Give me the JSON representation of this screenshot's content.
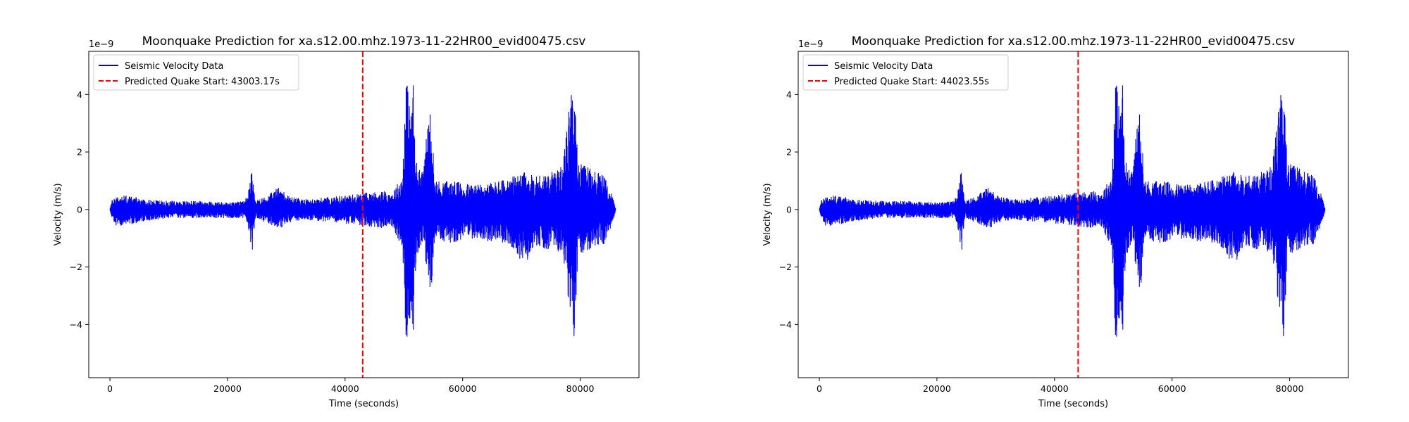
{
  "chart_data": [
    {
      "type": "line",
      "title": "Moonquake Prediction for xa.s12.00.mhz.1973-11-22HR00_evid00475.csv",
      "xlabel": "Time (seconds)",
      "ylabel": "Velocity (m/s)",
      "y_offset_text": "1e−9",
      "xlim": [
        -3600,
        90000
      ],
      "ylim": [
        -5.85,
        5.5
      ],
      "x_ticks": [
        0,
        20000,
        40000,
        60000,
        80000
      ],
      "x_tick_labels": [
        "0",
        "20000",
        "40000",
        "60000",
        "80000"
      ],
      "y_ticks": [
        4,
        2,
        0,
        -2,
        -4
      ],
      "y_tick_labels": [
        "4",
        "2",
        "0",
        "−2",
        "−4"
      ],
      "grid": false,
      "legend_position": "top-left",
      "series": [
        {
          "name": "Seismic Velocity Data",
          "color": "#0000ff",
          "style": "solid",
          "x_range": [
            0,
            86000
          ],
          "envelope": [
            [
              0,
              0.05,
              -0.05
            ],
            [
              300,
              0.3,
              -0.3
            ],
            [
              1000,
              0.5,
              -0.6
            ],
            [
              3000,
              0.5,
              -0.55
            ],
            [
              6000,
              0.35,
              -0.4
            ],
            [
              10000,
              0.3,
              -0.3
            ],
            [
              15000,
              0.3,
              -0.3
            ],
            [
              20000,
              0.25,
              -0.3
            ],
            [
              23000,
              0.3,
              -0.3
            ],
            [
              24200,
              1.4,
              -1.45
            ],
            [
              24700,
              0.3,
              -0.3
            ],
            [
              27000,
              0.5,
              -0.5
            ],
            [
              29000,
              0.85,
              -0.7
            ],
            [
              30000,
              0.5,
              -0.5
            ],
            [
              33000,
              0.35,
              -0.35
            ],
            [
              38000,
              0.45,
              -0.45
            ],
            [
              42000,
              0.55,
              -0.55
            ],
            [
              46000,
              0.65,
              -0.65
            ],
            [
              48000,
              0.6,
              -0.6
            ],
            [
              49800,
              1.2,
              -1.5
            ],
            [
              50300,
              4.9,
              -5.3
            ],
            [
              51000,
              3.8,
              -3.8
            ],
            [
              51600,
              4.5,
              -4.5
            ],
            [
              52000,
              1.8,
              -2.0
            ],
            [
              53000,
              1.2,
              -1.2
            ],
            [
              54700,
              3.9,
              -3.1
            ],
            [
              55200,
              1.0,
              -1.0
            ],
            [
              58000,
              1.0,
              -1.2
            ],
            [
              61000,
              0.9,
              -1.0
            ],
            [
              64000,
              0.9,
              -1.1
            ],
            [
              68000,
              1.1,
              -1.2
            ],
            [
              70500,
              1.3,
              -2.0
            ],
            [
              72000,
              1.2,
              -1.3
            ],
            [
              75000,
              1.3,
              -1.4
            ],
            [
              77000,
              1.5,
              -1.5
            ],
            [
              79000,
              5.1,
              -4.9
            ],
            [
              79600,
              1.6,
              -1.6
            ],
            [
              82000,
              1.5,
              -1.4
            ],
            [
              84000,
              1.2,
              -1.2
            ],
            [
              85500,
              0.5,
              -0.5
            ],
            [
              86000,
              0.05,
              -0.05
            ]
          ]
        },
        {
          "name": "Predicted Quake Start: 43003.17s",
          "color": "#ff0000",
          "style": "dashed",
          "x": 43003.17
        }
      ]
    },
    {
      "type": "line",
      "title": "Moonquake Prediction for xa.s12.00.mhz.1973-11-22HR00_evid00475.csv",
      "xlabel": "Time (seconds)",
      "ylabel": "Velocity (m/s)",
      "y_offset_text": "1e−9",
      "xlim": [
        -3600,
        90000
      ],
      "ylim": [
        -5.85,
        5.5
      ],
      "x_ticks": [
        0,
        20000,
        40000,
        60000,
        80000
      ],
      "x_tick_labels": [
        "0",
        "20000",
        "40000",
        "60000",
        "80000"
      ],
      "y_ticks": [
        4,
        2,
        0,
        -2,
        -4
      ],
      "y_tick_labels": [
        "4",
        "2",
        "0",
        "−2",
        "−4"
      ],
      "grid": false,
      "legend_position": "top-left",
      "series": [
        {
          "name": "Seismic Velocity Data",
          "color": "#0000ff",
          "style": "solid",
          "x_range": [
            0,
            86000
          ],
          "envelope": [
            [
              0,
              0.05,
              -0.05
            ],
            [
              300,
              0.3,
              -0.3
            ],
            [
              1000,
              0.5,
              -0.6
            ],
            [
              3000,
              0.5,
              -0.55
            ],
            [
              6000,
              0.35,
              -0.4
            ],
            [
              10000,
              0.3,
              -0.3
            ],
            [
              15000,
              0.3,
              -0.3
            ],
            [
              20000,
              0.25,
              -0.3
            ],
            [
              23000,
              0.3,
              -0.3
            ],
            [
              24200,
              1.4,
              -1.45
            ],
            [
              24700,
              0.3,
              -0.3
            ],
            [
              27000,
              0.5,
              -0.5
            ],
            [
              29000,
              0.85,
              -0.7
            ],
            [
              30000,
              0.5,
              -0.5
            ],
            [
              33000,
              0.35,
              -0.35
            ],
            [
              38000,
              0.45,
              -0.45
            ],
            [
              42000,
              0.55,
              -0.55
            ],
            [
              46000,
              0.65,
              -0.65
            ],
            [
              48000,
              0.6,
              -0.6
            ],
            [
              49800,
              1.2,
              -1.5
            ],
            [
              50300,
              4.9,
              -5.3
            ],
            [
              51000,
              3.8,
              -3.8
            ],
            [
              51600,
              4.5,
              -4.5
            ],
            [
              52000,
              1.8,
              -2.0
            ],
            [
              53000,
              1.2,
              -1.2
            ],
            [
              54700,
              3.9,
              -3.1
            ],
            [
              55200,
              1.0,
              -1.0
            ],
            [
              58000,
              1.0,
              -1.2
            ],
            [
              61000,
              0.9,
              -1.0
            ],
            [
              64000,
              0.9,
              -1.1
            ],
            [
              68000,
              1.1,
              -1.2
            ],
            [
              70500,
              1.3,
              -2.0
            ],
            [
              72000,
              1.2,
              -1.3
            ],
            [
              75000,
              1.3,
              -1.4
            ],
            [
              77000,
              1.5,
              -1.5
            ],
            [
              79000,
              5.1,
              -4.9
            ],
            [
              79600,
              1.6,
              -1.6
            ],
            [
              82000,
              1.5,
              -1.4
            ],
            [
              84000,
              1.2,
              -1.2
            ],
            [
              85500,
              0.5,
              -0.5
            ],
            [
              86000,
              0.05,
              -0.05
            ]
          ]
        },
        {
          "name": "Predicted Quake Start: 44023.55s",
          "color": "#ff0000",
          "style": "dashed",
          "x": 44023.55
        }
      ]
    }
  ]
}
